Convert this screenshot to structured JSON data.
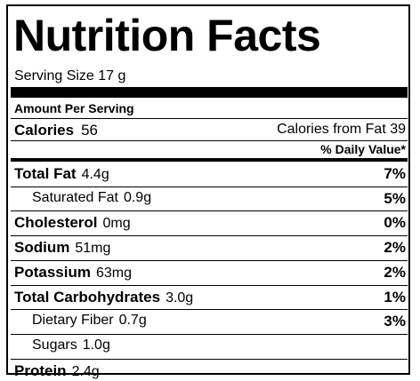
{
  "title": "Nutrition Facts",
  "serving_size": "Serving Size 17 g",
  "amount_per_serving": "Amount Per Serving",
  "calories": {
    "label": "Calories",
    "value": "56",
    "from_fat": "Calories from Fat 39"
  },
  "daily_value_header": "% Daily Value*",
  "nutrients": [
    {
      "name": "Total Fat",
      "amount": "4.4g",
      "dv": "7%",
      "sub": [
        {
          "name": "Saturated Fat",
          "amount": "0.9g",
          "dv": "5%"
        }
      ]
    },
    {
      "name": "Cholesterol",
      "amount": "0mg",
      "dv": "0%"
    },
    {
      "name": "Sodium",
      "amount": "51mg",
      "dv": "2%"
    },
    {
      "name": "Potassium",
      "amount": "63mg",
      "dv": "2%"
    },
    {
      "name": "Total Carbohydrates",
      "amount": "3.0g",
      "dv": "1%",
      "sub": [
        {
          "name": "Dietary Fiber",
          "amount": "0.7g",
          "dv": "3%"
        },
        {
          "name": "Sugars",
          "amount": "1.0g"
        }
      ]
    },
    {
      "name": "Protein",
      "amount": "2.4g"
    }
  ]
}
